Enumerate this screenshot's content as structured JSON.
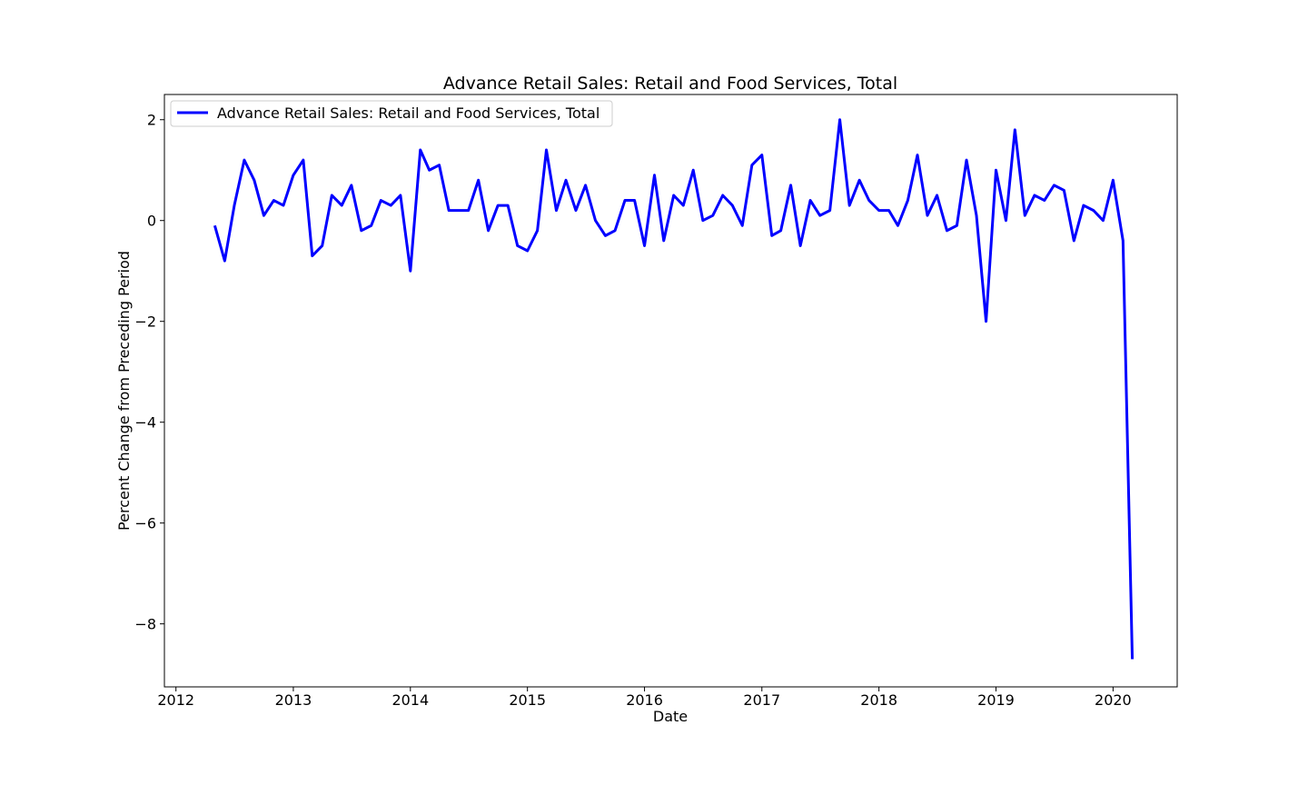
{
  "chart_data": {
    "type": "line",
    "title": "Advance Retail Sales: Retail and Food Services, Total",
    "xlabel": "Date",
    "ylabel": "Percent Change from Preceding Period",
    "x_range": [
      "2011-11-26",
      "2020-07-19"
    ],
    "ylim": [
      -9.25,
      2.5
    ],
    "grid": false,
    "legend_position": "upper-left",
    "x_ticks": [
      {
        "date": "2012-01-01",
        "label": "2012"
      },
      {
        "date": "2013-01-01",
        "label": "2013"
      },
      {
        "date": "2014-01-01",
        "label": "2014"
      },
      {
        "date": "2015-01-01",
        "label": "2015"
      },
      {
        "date": "2016-01-01",
        "label": "2016"
      },
      {
        "date": "2017-01-01",
        "label": "2017"
      },
      {
        "date": "2018-01-01",
        "label": "2018"
      },
      {
        "date": "2019-01-01",
        "label": "2019"
      },
      {
        "date": "2020-01-01",
        "label": "2020"
      }
    ],
    "y_ticks": [
      {
        "value": 2,
        "label": "2"
      },
      {
        "value": 0,
        "label": "0"
      },
      {
        "value": -2,
        "label": "−2"
      },
      {
        "value": -4,
        "label": "−4"
      },
      {
        "value": -6,
        "label": "−6"
      },
      {
        "value": -8,
        "label": "−8"
      }
    ],
    "series": [
      {
        "name": "Advance Retail Sales: Retail and Food Services, Total",
        "color": "#0000ff",
        "x": [
          "2012-05-01",
          "2012-06-01",
          "2012-07-01",
          "2012-08-01",
          "2012-09-01",
          "2012-10-01",
          "2012-11-01",
          "2012-12-01",
          "2013-01-01",
          "2013-02-01",
          "2013-03-01",
          "2013-04-01",
          "2013-05-01",
          "2013-06-01",
          "2013-07-01",
          "2013-08-01",
          "2013-09-01",
          "2013-10-01",
          "2013-11-01",
          "2013-12-01",
          "2014-01-01",
          "2014-02-01",
          "2014-03-01",
          "2014-04-01",
          "2014-05-01",
          "2014-06-01",
          "2014-07-01",
          "2014-08-01",
          "2014-09-01",
          "2014-10-01",
          "2014-11-01",
          "2014-12-01",
          "2015-01-01",
          "2015-02-01",
          "2015-03-01",
          "2015-04-01",
          "2015-05-01",
          "2015-06-01",
          "2015-07-01",
          "2015-08-01",
          "2015-09-01",
          "2015-10-01",
          "2015-11-01",
          "2015-12-01",
          "2016-01-01",
          "2016-02-01",
          "2016-03-01",
          "2016-04-01",
          "2016-05-01",
          "2016-06-01",
          "2016-07-01",
          "2016-08-01",
          "2016-09-01",
          "2016-10-01",
          "2016-11-01",
          "2016-12-01",
          "2017-01-01",
          "2017-02-01",
          "2017-03-01",
          "2017-04-01",
          "2017-05-01",
          "2017-06-01",
          "2017-07-01",
          "2017-08-01",
          "2017-09-01",
          "2017-10-01",
          "2017-11-01",
          "2017-12-01",
          "2018-01-01",
          "2018-02-01",
          "2018-03-01",
          "2018-04-01",
          "2018-05-01",
          "2018-06-01",
          "2018-07-01",
          "2018-08-01",
          "2018-09-01",
          "2018-10-01",
          "2018-11-01",
          "2018-12-01",
          "2019-01-01",
          "2019-02-01",
          "2019-03-01",
          "2019-04-01",
          "2019-05-01",
          "2019-06-01",
          "2019-07-01",
          "2019-08-01",
          "2019-09-01",
          "2019-10-01",
          "2019-11-01",
          "2019-12-01",
          "2020-01-01",
          "2020-02-01",
          "2020-03-01"
        ],
        "y": [
          -0.1,
          -0.8,
          0.3,
          1.2,
          0.8,
          0.1,
          0.4,
          0.3,
          0.9,
          1.2,
          -0.7,
          -0.5,
          0.5,
          0.3,
          0.7,
          -0.2,
          -0.1,
          0.4,
          0.3,
          0.5,
          -1.0,
          1.4,
          1.0,
          1.1,
          0.2,
          0.2,
          0.2,
          0.8,
          -0.2,
          0.3,
          0.3,
          -0.5,
          -0.6,
          -0.2,
          1.4,
          0.2,
          0.8,
          0.2,
          0.7,
          0.0,
          -0.3,
          -0.2,
          0.4,
          0.4,
          -0.5,
          0.9,
          -0.4,
          0.5,
          0.3,
          1.0,
          0.0,
          0.1,
          0.5,
          0.3,
          -0.1,
          1.1,
          1.3,
          -0.3,
          -0.2,
          0.7,
          -0.5,
          0.4,
          0.1,
          0.2,
          2.0,
          0.3,
          0.8,
          0.4,
          0.2,
          0.2,
          -0.1,
          0.4,
          1.3,
          0.1,
          0.5,
          -0.2,
          -0.1,
          1.2,
          0.1,
          -2.0,
          1.0,
          0.0,
          1.8,
          0.1,
          0.5,
          0.4,
          0.7,
          0.6,
          -0.4,
          0.3,
          0.2,
          0.0,
          0.8,
          -0.4,
          -8.7
        ]
      }
    ]
  }
}
